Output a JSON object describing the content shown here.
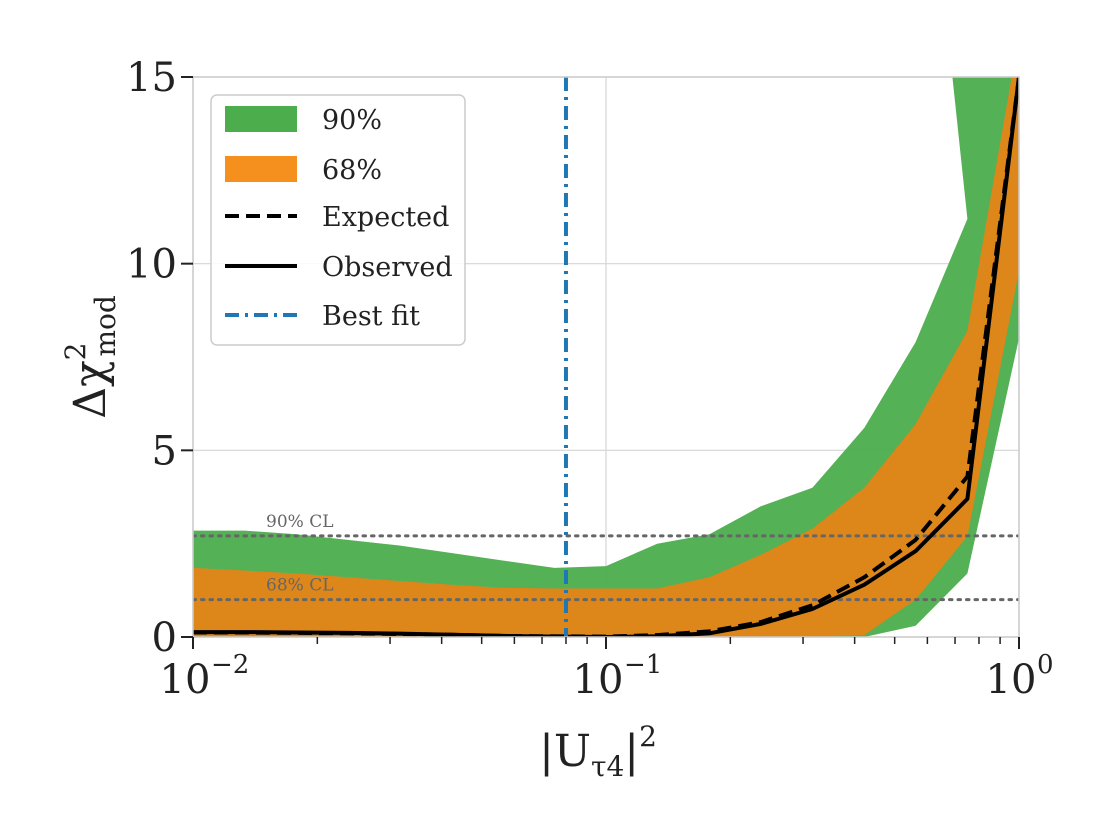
{
  "chart_data": {
    "type": "area",
    "xscale": "log",
    "xlim": [
      0.01,
      1.0
    ],
    "ylim": [
      0,
      15
    ],
    "xlabel": "|U_τ4|^2",
    "xlabel_parts": {
      "base": "|U",
      "sub": "τ4",
      "tail": "|",
      "sup": "2"
    },
    "ylabel": "Δχ²_mod",
    "ylabel_parts": {
      "base": "Δχ",
      "sup": "2",
      "sub": "mod"
    },
    "x_ticks": [
      {
        "value": 0.01,
        "base": "10",
        "exp": "−2"
      },
      {
        "value": 0.1,
        "base": "10",
        "exp": "−1"
      },
      {
        "value": 1.0,
        "base": "10",
        "exp": "0"
      }
    ],
    "y_ticks": [
      {
        "value": 0,
        "label": "0"
      },
      {
        "value": 5,
        "label": "5"
      },
      {
        "value": 10,
        "label": "10"
      },
      {
        "value": 15,
        "label": "15"
      }
    ],
    "grid": true,
    "legend_position": "top-left",
    "colors": {
      "band90": "#4cad4c",
      "band68": "#f5901e",
      "expected": "#000000",
      "observed": "#000000",
      "best_fit": "#1f77b4",
      "cl_line": "#666666"
    },
    "legend": [
      {
        "key": "band90",
        "label": "90%"
      },
      {
        "key": "band68",
        "label": "68%"
      },
      {
        "key": "expected",
        "label": "Expected"
      },
      {
        "key": "observed",
        "label": "Observed"
      },
      {
        "key": "best_fit",
        "label": "Best fit"
      }
    ],
    "x": [
      0.01,
      0.0133,
      0.0178,
      0.0237,
      0.0316,
      0.0422,
      0.0562,
      0.075,
      0.1,
      0.133,
      0.178,
      0.237,
      0.316,
      0.422,
      0.562,
      0.75,
      1.0
    ],
    "band90_upper": [
      2.85,
      2.85,
      2.75,
      2.6,
      2.45,
      2.25,
      2.05,
      1.85,
      1.9,
      2.5,
      2.75,
      3.5,
      4.0,
      5.6,
      7.9,
      11.2,
      15.0
    ],
    "band90_lower": [
      0.0,
      0.0,
      0.0,
      0.0,
      0.0,
      0.0,
      0.0,
      0.0,
      0.0,
      0.0,
      0.0,
      0.0,
      0.0,
      0.0,
      0.3,
      1.7,
      8.0
    ],
    "band68_upper": [
      1.85,
      1.78,
      1.7,
      1.6,
      1.5,
      1.4,
      1.32,
      1.3,
      1.3,
      1.3,
      1.6,
      2.2,
      2.9,
      4.0,
      5.7,
      8.2,
      15.0
    ],
    "band68_lower": [
      0.0,
      0.0,
      0.0,
      0.0,
      0.0,
      0.0,
      0.0,
      0.0,
      0.0,
      0.0,
      0.0,
      0.0,
      0.0,
      0.05,
      1.0,
      2.7,
      9.8
    ],
    "band_top_x": [
      0.69,
      0.96
    ],
    "expected": [
      0.12,
      0.12,
      0.11,
      0.1,
      0.08,
      0.06,
      0.03,
      0.02,
      0.01,
      0.05,
      0.15,
      0.4,
      0.85,
      1.6,
      2.6,
      4.3,
      15.0
    ],
    "observed": [
      0.13,
      0.13,
      0.12,
      0.11,
      0.09,
      0.06,
      0.03,
      0.01,
      0.0,
      0.02,
      0.1,
      0.35,
      0.75,
      1.4,
      2.3,
      3.7,
      15.0
    ],
    "best_fit_x": 0.08,
    "cl_lines": [
      {
        "y": 2.71,
        "label": "90% CL"
      },
      {
        "y": 1.0,
        "label": "68% CL"
      }
    ]
  }
}
